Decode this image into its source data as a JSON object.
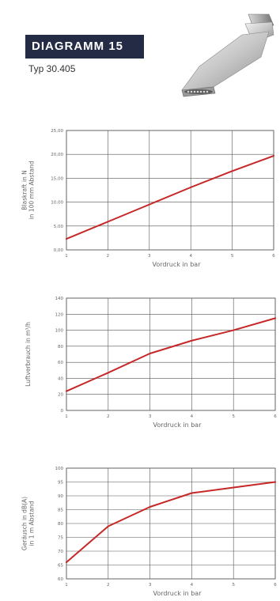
{
  "header": {
    "title": "DIAGRAMM 15",
    "subtitle": "Typ 30.405"
  },
  "colors": {
    "title_bg": "#232b45",
    "line": "#c62828",
    "grid": "#555555"
  },
  "chart_data": [
    {
      "type": "line",
      "xlabel": "Vordruck in bar",
      "ylabel_lines": [
        "Blaskraft in N",
        "in 100 mm Abstand"
      ],
      "xlim": [
        1,
        6
      ],
      "ylim": [
        0,
        25
      ],
      "xticks": [
        "1",
        "2",
        "3",
        "4",
        "5",
        "6"
      ],
      "yticks": [
        "0,00",
        "5,00",
        "10,00",
        "15,00",
        "20,00",
        "25,00"
      ],
      "ytick_values": [
        0,
        5,
        10,
        15,
        20,
        25
      ],
      "grid": true,
      "x": [
        1,
        2,
        3,
        4,
        5,
        6
      ],
      "y": [
        2.3,
        5.9,
        9.5,
        13.1,
        16.5,
        19.7
      ]
    },
    {
      "type": "line",
      "xlabel": "Vordruck in bar",
      "ylabel_lines": [
        "Luftverbrauch in m³/h"
      ],
      "xlim": [
        1,
        6
      ],
      "ylim": [
        0,
        140
      ],
      "xticks": [
        "1",
        "2",
        "3",
        "4",
        "5",
        "6"
      ],
      "yticks": [
        "0",
        "20",
        "40",
        "60",
        "80",
        "100",
        "120",
        "140"
      ],
      "ytick_values": [
        0,
        20,
        40,
        60,
        80,
        100,
        120,
        140
      ],
      "grid": true,
      "x": [
        1,
        2,
        3,
        4,
        5,
        6
      ],
      "y": [
        24,
        47,
        71,
        87,
        100,
        115
      ]
    },
    {
      "type": "line",
      "xlabel": "Vordruck in bar",
      "ylabel_lines": [
        "Geräusch in dB(A)",
        "in 1 m Abstand"
      ],
      "xlim": [
        1,
        6
      ],
      "ylim": [
        60,
        100
      ],
      "xticks": [
        "1",
        "2",
        "3",
        "4",
        "5",
        "6"
      ],
      "yticks": [
        "60",
        "65",
        "70",
        "75",
        "80",
        "85",
        "90",
        "95",
        "100"
      ],
      "ytick_values": [
        60,
        65,
        70,
        75,
        80,
        85,
        90,
        95,
        100
      ],
      "grid": true,
      "x": [
        1,
        2,
        3,
        4,
        5,
        6
      ],
      "y": [
        66,
        79,
        86,
        91,
        93,
        95
      ]
    }
  ]
}
